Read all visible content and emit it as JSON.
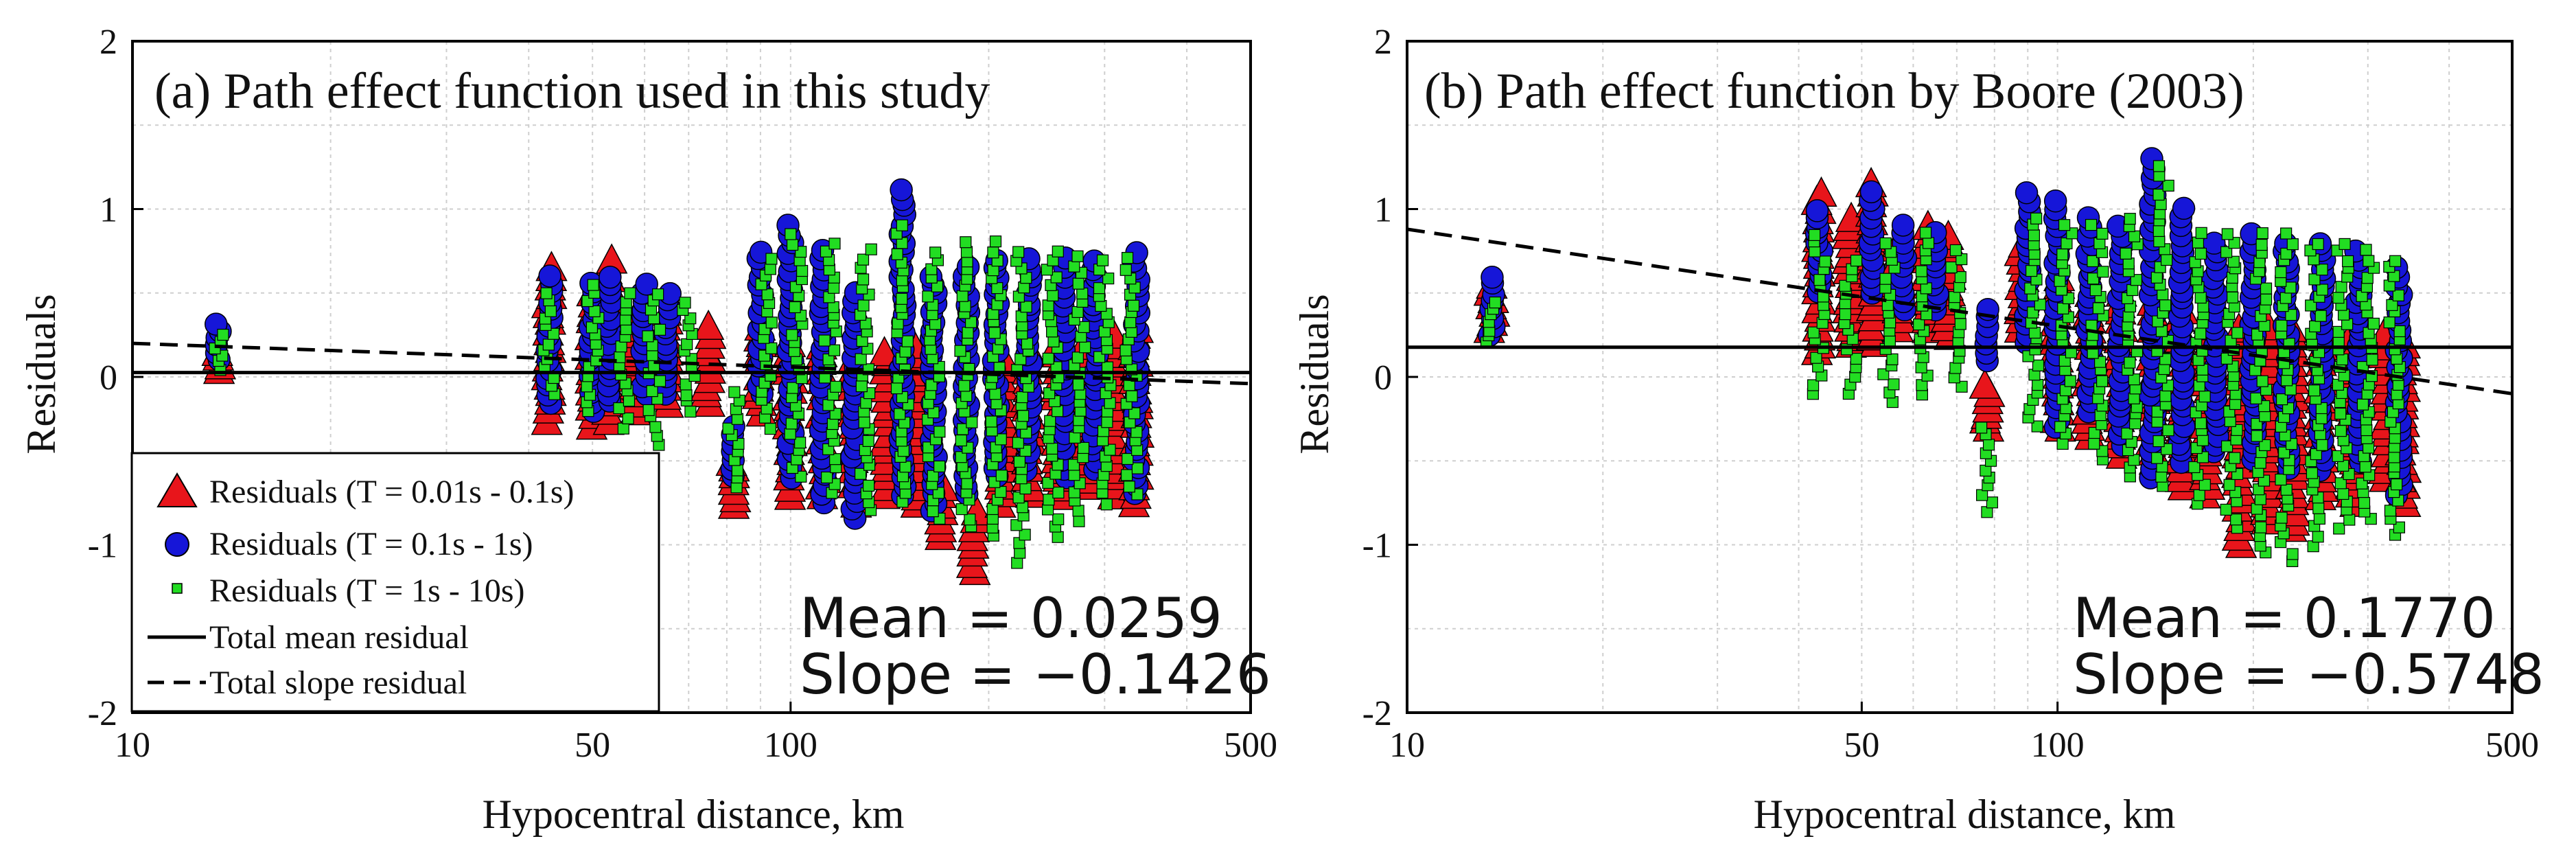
{
  "chart_data": [
    {
      "type": "scatter",
      "title": "(a) Path effect function used in this study",
      "xlabel": "Hypocentral distance, km",
      "ylabel": "Residuals",
      "xscale": "log",
      "xlim": [
        10,
        500
      ],
      "ylim": [
        -2,
        2
      ],
      "x_ticks": [
        10,
        50,
        100,
        500
      ],
      "y_ticks": [
        -2,
        -1,
        0,
        1,
        2
      ],
      "grid": true,
      "legend_position": "bottom-left",
      "mean_label": "Mean = 0.0259",
      "slope_label": "Slope = −0.1426",
      "mean": 0.0259,
      "slope": -0.1426,
      "series": [
        {
          "name": "Residuals (T = 0.01s - 0.1s)",
          "marker": "triangle",
          "color": "#e8151b",
          "groups": [
            {
              "x": 13.5,
              "ymin": 0.05,
              "ymax": 0.15
            },
            {
              "x": 43,
              "ymin": -0.25,
              "ymax": 0.65
            },
            {
              "x": 50,
              "ymin": -0.28,
              "ymax": 0.5
            },
            {
              "x": 53,
              "ymin": -0.25,
              "ymax": 0.7
            },
            {
              "x": 58,
              "ymin": -0.2,
              "ymax": 0.35
            },
            {
              "x": 65,
              "ymin": -0.15,
              "ymax": 0.4
            },
            {
              "x": 75,
              "ymin": -0.15,
              "ymax": 0.3
            },
            {
              "x": 82,
              "ymin": -0.75,
              "ymax": -0.5
            },
            {
              "x": 90,
              "ymin": -0.2,
              "ymax": 0.3
            },
            {
              "x": 100,
              "ymin": -0.7,
              "ymax": 0.2
            },
            {
              "x": 112,
              "ymin": -0.7,
              "ymax": 0.2
            },
            {
              "x": 125,
              "ymin": -0.75,
              "ymax": 0.1
            },
            {
              "x": 140,
              "ymin": -0.7,
              "ymax": 0.15
            },
            {
              "x": 155,
              "ymin": -0.75,
              "ymax": 0.2
            },
            {
              "x": 170,
              "ymin": -0.95,
              "ymax": -0.65
            },
            {
              "x": 190,
              "ymin": -1.15,
              "ymax": -0.8
            },
            {
              "x": 210,
              "ymin": -0.75,
              "ymax": 0.1
            },
            {
              "x": 230,
              "ymin": -0.7,
              "ymax": 0.15
            },
            {
              "x": 255,
              "ymin": -0.7,
              "ymax": 0.2
            },
            {
              "x": 280,
              "ymin": -0.65,
              "ymax": 0.2
            },
            {
              "x": 310,
              "ymin": -0.7,
              "ymax": 0.25
            },
            {
              "x": 335,
              "ymin": -0.75,
              "ymax": 0.3
            }
          ]
        },
        {
          "name": "Residuals (T = 0.1s - 1s)",
          "marker": "circle",
          "color": "#1616d8",
          "groups": [
            {
              "x": 13.5,
              "ymin": 0.1,
              "ymax": 0.32
            },
            {
              "x": 43,
              "ymin": -0.15,
              "ymax": 0.6
            },
            {
              "x": 50,
              "ymin": -0.2,
              "ymax": 0.55
            },
            {
              "x": 53,
              "ymin": -0.15,
              "ymax": 0.6
            },
            {
              "x": 60,
              "ymin": -0.1,
              "ymax": 0.55
            },
            {
              "x": 65,
              "ymin": -0.1,
              "ymax": 0.5
            },
            {
              "x": 82,
              "ymin": -0.6,
              "ymax": -0.3
            },
            {
              "x": 90,
              "ymin": -0.1,
              "ymax": 0.75
            },
            {
              "x": 100,
              "ymin": -0.6,
              "ymax": 0.9
            },
            {
              "x": 112,
              "ymin": -0.75,
              "ymax": 0.75
            },
            {
              "x": 125,
              "ymin": -0.85,
              "ymax": 0.5
            },
            {
              "x": 148,
              "ymin": -0.7,
              "ymax": 1.12
            },
            {
              "x": 165,
              "ymin": -0.8,
              "ymax": 0.6
            },
            {
              "x": 185,
              "ymin": -0.7,
              "ymax": 0.65
            },
            {
              "x": 205,
              "ymin": -0.6,
              "ymax": 0.7
            },
            {
              "x": 230,
              "ymin": -0.55,
              "ymax": 0.7
            },
            {
              "x": 260,
              "ymin": -0.6,
              "ymax": 0.7
            },
            {
              "x": 290,
              "ymin": -0.55,
              "ymax": 0.7
            },
            {
              "x": 335,
              "ymin": -0.7,
              "ymax": 0.75
            }
          ]
        },
        {
          "name": "Residuals (T = 1s - 10s)",
          "marker": "square",
          "color": "#22dd22",
          "groups": [
            {
              "x": 13.5,
              "ymin": 0.05,
              "ymax": 0.25
            },
            {
              "x": 43,
              "ymin": -0.1,
              "ymax": 0.5
            },
            {
              "x": 50,
              "ymin": -0.2,
              "ymax": 0.55
            },
            {
              "x": 56,
              "ymin": -0.3,
              "ymax": 0.5
            },
            {
              "x": 62,
              "ymin": -0.4,
              "ymax": 0.5
            },
            {
              "x": 70,
              "ymin": -0.2,
              "ymax": 0.45
            },
            {
              "x": 82,
              "ymin": -0.65,
              "ymax": -0.1
            },
            {
              "x": 92,
              "ymin": -0.3,
              "ymax": 0.7
            },
            {
              "x": 102,
              "ymin": -0.6,
              "ymax": 0.85
            },
            {
              "x": 115,
              "ymin": -0.7,
              "ymax": 0.8
            },
            {
              "x": 130,
              "ymin": -0.8,
              "ymax": 0.75
            },
            {
              "x": 148,
              "ymin": -0.75,
              "ymax": 0.9
            },
            {
              "x": 165,
              "ymin": -0.85,
              "ymax": 0.75
            },
            {
              "x": 185,
              "ymin": -0.9,
              "ymax": 0.8
            },
            {
              "x": 205,
              "ymin": -0.95,
              "ymax": 0.8
            },
            {
              "x": 225,
              "ymin": -1.1,
              "ymax": 0.75
            },
            {
              "x": 250,
              "ymin": -0.95,
              "ymax": 0.75
            },
            {
              "x": 275,
              "ymin": -0.85,
              "ymax": 0.72
            },
            {
              "x": 300,
              "ymin": -0.75,
              "ymax": 0.7
            },
            {
              "x": 330,
              "ymin": -0.7,
              "ymax": 0.7
            }
          ]
        }
      ],
      "lines": [
        {
          "name": "Total mean residual",
          "style": "solid",
          "points": [
            [
              10,
              0.0259
            ],
            [
              500,
              0.0259
            ]
          ]
        },
        {
          "name": "Total slope residual",
          "style": "dashed",
          "points": [
            [
              10,
              0.2
            ],
            [
              500,
              -0.04
            ]
          ]
        }
      ]
    },
    {
      "type": "scatter",
      "title": "(b) Path effect function by Boore (2003)",
      "xlabel": "Hypocentral distance, km",
      "ylabel": "Residuals",
      "xscale": "log",
      "xlim": [
        10,
        500
      ],
      "ylim": [
        -2,
        2
      ],
      "x_ticks": [
        10,
        50,
        100,
        500
      ],
      "y_ticks": [
        -2,
        -1,
        0,
        1,
        2
      ],
      "grid": true,
      "mean_label": "Mean = 0.1770",
      "slope_label": "Slope = −0.5748",
      "mean": 0.177,
      "slope": -0.5748,
      "series": [
        {
          "name": "Residuals (T = 0.01s - 0.1s)",
          "marker": "triangle",
          "color": "#e8151b",
          "groups": [
            {
              "x": 13.5,
              "ymin": 0.3,
              "ymax": 0.55
            },
            {
              "x": 43,
              "ymin": 0.15,
              "ymax": 1.1
            },
            {
              "x": 48,
              "ymin": 0.2,
              "ymax": 0.95
            },
            {
              "x": 52,
              "ymin": 0.2,
              "ymax": 1.15
            },
            {
              "x": 57,
              "ymin": 0.3,
              "ymax": 0.8
            },
            {
              "x": 63,
              "ymin": 0.3,
              "ymax": 0.9
            },
            {
              "x": 68,
              "ymin": 0.25,
              "ymax": 0.85
            },
            {
              "x": 78,
              "ymin": -0.3,
              "ymax": -0.05
            },
            {
              "x": 88,
              "ymin": 0.3,
              "ymax": 0.8
            },
            {
              "x": 100,
              "ymin": -0.3,
              "ymax": 0.6
            },
            {
              "x": 112,
              "ymin": -0.35,
              "ymax": 0.5
            },
            {
              "x": 125,
              "ymin": -0.45,
              "ymax": 0.5
            },
            {
              "x": 140,
              "ymin": -0.5,
              "ymax": 0.45
            },
            {
              "x": 155,
              "ymin": -0.65,
              "ymax": 0.4
            },
            {
              "x": 170,
              "ymin": -0.7,
              "ymax": 0.35
            },
            {
              "x": 190,
              "ymin": -1.0,
              "ymax": 0.3
            },
            {
              "x": 210,
              "ymin": -0.85,
              "ymax": 0.3
            },
            {
              "x": 230,
              "ymin": -0.9,
              "ymax": 0.3
            },
            {
              "x": 255,
              "ymin": -0.7,
              "ymax": 0.3
            },
            {
              "x": 285,
              "ymin": -0.75,
              "ymax": 0.25
            },
            {
              "x": 320,
              "ymin": -0.6,
              "ymax": 0.25
            },
            {
              "x": 340,
              "ymin": -0.75,
              "ymax": 0.2
            }
          ]
        },
        {
          "name": "Residuals (T = 0.1s - 1s)",
          "marker": "circle",
          "color": "#1616d8",
          "groups": [
            {
              "x": 13.5,
              "ymin": 0.25,
              "ymax": 0.6
            },
            {
              "x": 43,
              "ymin": 0.5,
              "ymax": 1.0
            },
            {
              "x": 52,
              "ymin": 0.5,
              "ymax": 1.1
            },
            {
              "x": 58,
              "ymin": 0.4,
              "ymax": 0.9
            },
            {
              "x": 65,
              "ymin": 0.4,
              "ymax": 0.85
            },
            {
              "x": 78,
              "ymin": 0.1,
              "ymax": 0.4
            },
            {
              "x": 90,
              "ymin": 0.2,
              "ymax": 1.1
            },
            {
              "x": 100,
              "ymin": -0.3,
              "ymax": 1.05
            },
            {
              "x": 112,
              "ymin": -0.2,
              "ymax": 0.95
            },
            {
              "x": 125,
              "ymin": -0.4,
              "ymax": 0.9
            },
            {
              "x": 140,
              "ymin": -0.6,
              "ymax": 1.3
            },
            {
              "x": 155,
              "ymin": -0.5,
              "ymax": 1.0
            },
            {
              "x": 175,
              "ymin": -0.45,
              "ymax": 0.8
            },
            {
              "x": 200,
              "ymin": -0.5,
              "ymax": 0.85
            },
            {
              "x": 225,
              "ymin": -0.55,
              "ymax": 0.8
            },
            {
              "x": 255,
              "ymin": -0.55,
              "ymax": 0.8
            },
            {
              "x": 290,
              "ymin": -0.5,
              "ymax": 0.75
            },
            {
              "x": 335,
              "ymin": -0.7,
              "ymax": 0.65
            }
          ]
        },
        {
          "name": "Residuals (T = 1s - 10s)",
          "marker": "square",
          "color": "#22dd22",
          "groups": [
            {
              "x": 13.5,
              "ymin": 0.2,
              "ymax": 0.45
            },
            {
              "x": 43,
              "ymin": -0.1,
              "ymax": 0.85
            },
            {
              "x": 48,
              "ymin": -0.1,
              "ymax": 0.7
            },
            {
              "x": 55,
              "ymin": -0.15,
              "ymax": 0.8
            },
            {
              "x": 62,
              "ymin": -0.1,
              "ymax": 0.85
            },
            {
              "x": 70,
              "ymin": -0.05,
              "ymax": 0.75
            },
            {
              "x": 78,
              "ymin": -0.8,
              "ymax": -0.3
            },
            {
              "x": 92,
              "ymin": -0.3,
              "ymax": 0.95
            },
            {
              "x": 103,
              "ymin": -0.4,
              "ymax": 0.9
            },
            {
              "x": 115,
              "ymin": -0.5,
              "ymax": 0.9
            },
            {
              "x": 130,
              "ymin": -0.6,
              "ymax": 0.95
            },
            {
              "x": 145,
              "ymin": -0.65,
              "ymax": 1.25
            },
            {
              "x": 165,
              "ymin": -0.75,
              "ymax": 0.85
            },
            {
              "x": 185,
              "ymin": -0.9,
              "ymax": 0.85
            },
            {
              "x": 205,
              "ymin": -1.05,
              "ymax": 0.85
            },
            {
              "x": 225,
              "ymin": -1.1,
              "ymax": 0.85
            },
            {
              "x": 250,
              "ymin": -1.0,
              "ymax": 0.8
            },
            {
              "x": 275,
              "ymin": -0.9,
              "ymax": 0.8
            },
            {
              "x": 300,
              "ymin": -0.85,
              "ymax": 0.75
            },
            {
              "x": 330,
              "ymin": -0.95,
              "ymax": 0.7
            }
          ]
        }
      ],
      "lines": [
        {
          "name": "Total mean residual",
          "style": "solid",
          "points": [
            [
              10,
              0.177
            ],
            [
              500,
              0.177
            ]
          ]
        },
        {
          "name": "Total slope residual",
          "style": "dashed",
          "points": [
            [
              10,
              0.88
            ],
            [
              500,
              -0.1
            ]
          ]
        }
      ]
    }
  ]
}
